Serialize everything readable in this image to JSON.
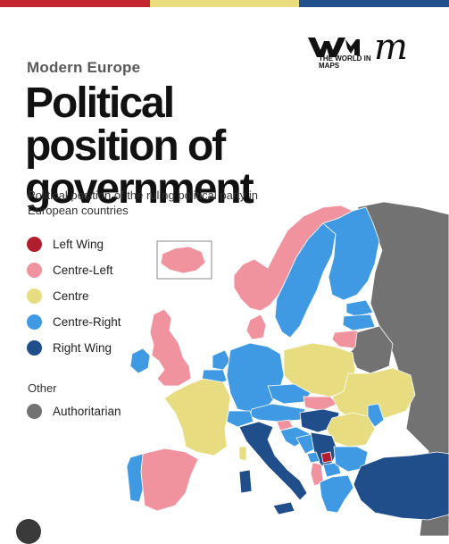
{
  "colors": {
    "bar": [
      "#c3272d",
      "#e9dd7d",
      "#22508d"
    ],
    "left_wing": "#b11e2e",
    "centre_left": "#f1939f",
    "centre": "#e7dd80",
    "centre_right": "#3f9ae3",
    "right_wing": "#1f4e8a",
    "authoritarian": "#727272",
    "sea": "#ffffff"
  },
  "header": {
    "eyebrow": "Modern Europe",
    "title": "Political position of government",
    "subtitle": "Political position of the ruling political party in European countries"
  },
  "logo": {
    "brand_text": "THE WORLD IN MAPS",
    "mark_icon": "world-in-maps-logo-icon",
    "secondary_icon": "m-script-logo-icon"
  },
  "legend": {
    "items": [
      {
        "label": "Left Wing",
        "color": "#b11e2e"
      },
      {
        "label": "Centre-Left",
        "color": "#f1939f"
      },
      {
        "label": "Centre",
        "color": "#e7dd80"
      },
      {
        "label": "Centre-Right",
        "color": "#3f9ae3"
      },
      {
        "label": "Right Wing",
        "color": "#1f4e8a"
      }
    ],
    "other_heading": "Other",
    "other_items": [
      {
        "label": "Authoritarian",
        "color": "#727272"
      }
    ]
  },
  "map": {
    "regions": [
      {
        "name": "norway",
        "category": "centre_left"
      },
      {
        "name": "sweden",
        "category": "centre_right"
      },
      {
        "name": "finland",
        "category": "centre_right"
      },
      {
        "name": "russia",
        "category": "authoritarian"
      },
      {
        "name": "belarus",
        "category": "authoritarian"
      },
      {
        "name": "estonia",
        "category": "centre_right"
      },
      {
        "name": "latvia",
        "category": "centre_right"
      },
      {
        "name": "lithuania",
        "category": "centre_left"
      },
      {
        "name": "iceland",
        "category": "centre_left"
      },
      {
        "name": "united-kingdom",
        "category": "centre_left"
      },
      {
        "name": "ireland",
        "category": "centre_right"
      },
      {
        "name": "denmark",
        "category": "centre_left"
      },
      {
        "name": "netherlands",
        "category": "centre_right"
      },
      {
        "name": "belgium",
        "category": "centre_right"
      },
      {
        "name": "germany",
        "category": "centre_right"
      },
      {
        "name": "poland",
        "category": "centre"
      },
      {
        "name": "czechia",
        "category": "centre_right"
      },
      {
        "name": "slovakia",
        "category": "centre_left"
      },
      {
        "name": "austria",
        "category": "centre_right"
      },
      {
        "name": "switzerland",
        "category": "centre_right"
      },
      {
        "name": "hungary",
        "category": "right_wing"
      },
      {
        "name": "ukraine",
        "category": "centre"
      },
      {
        "name": "moldova",
        "category": "centre_right"
      },
      {
        "name": "romania",
        "category": "centre"
      },
      {
        "name": "france",
        "category": "centre"
      },
      {
        "name": "spain",
        "category": "centre_left"
      },
      {
        "name": "portugal",
        "category": "centre_right"
      },
      {
        "name": "italy",
        "category": "right_wing"
      },
      {
        "name": "slovenia",
        "category": "centre_left"
      },
      {
        "name": "croatia",
        "category": "centre_right"
      },
      {
        "name": "bosnia",
        "category": "centre_right"
      },
      {
        "name": "serbia",
        "category": "right_wing"
      },
      {
        "name": "kosovo",
        "category": "left_wing"
      },
      {
        "name": "montenegro",
        "category": "centre_right"
      },
      {
        "name": "albania",
        "category": "centre_left"
      },
      {
        "name": "north-macedonia",
        "category": "centre_right"
      },
      {
        "name": "bulgaria",
        "category": "centre_right"
      },
      {
        "name": "greece",
        "category": "centre_right"
      },
      {
        "name": "turkey",
        "category": "right_wing"
      },
      {
        "name": "sardinia",
        "category": "right_wing"
      },
      {
        "name": "sicily",
        "category": "right_wing"
      },
      {
        "name": "corsica",
        "category": "centre"
      }
    ]
  }
}
